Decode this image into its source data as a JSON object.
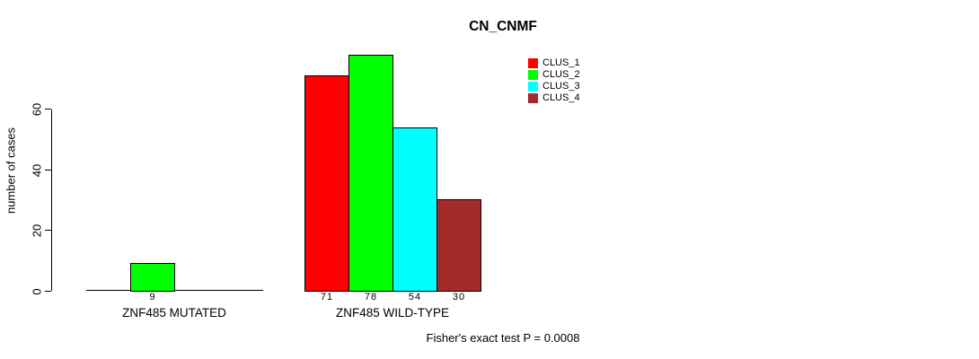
{
  "chart_data": {
    "type": "bar",
    "title": "CN_CNMF",
    "ylabel": "number of cases",
    "ylim": [
      0,
      60
    ],
    "yticks": [
      "0",
      "20",
      "40",
      "60"
    ],
    "grid": false,
    "legend_position": "top-right",
    "legend": [
      {
        "label": "CLUS_1",
        "color": "#FF0000"
      },
      {
        "label": "CLUS_2",
        "color": "#00FF00"
      },
      {
        "label": "CLUS_3",
        "color": "#00FFFF"
      },
      {
        "label": "CLUS_4",
        "color": "#A52A2A"
      }
    ],
    "groups": [
      {
        "label": "ZNF485 MUTATED",
        "bars": [
          {
            "cluster": "CLUS_2",
            "slot": 1,
            "value": 9,
            "color": "#00FF00"
          }
        ]
      },
      {
        "label": "ZNF485 WILD-TYPE",
        "bars": [
          {
            "cluster": "CLUS_1",
            "slot": 0,
            "value": 71,
            "color": "#FF0000"
          },
          {
            "cluster": "CLUS_2",
            "slot": 1,
            "value": 78,
            "color": "#00FF00"
          },
          {
            "cluster": "CLUS_3",
            "slot": 2,
            "value": 54,
            "color": "#00FFFF"
          },
          {
            "cluster": "CLUS_4",
            "slot": 3,
            "value": 30,
            "color": "#A52A2A"
          }
        ]
      }
    ],
    "annotation": "Fisher's exact test P = 0.0008"
  }
}
